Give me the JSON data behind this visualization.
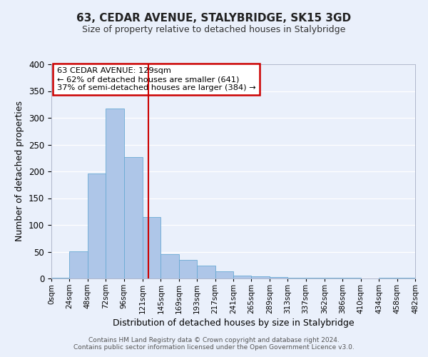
{
  "title": "63, CEDAR AVENUE, STALYBRIDGE, SK15 3GD",
  "subtitle": "Size of property relative to detached houses in Stalybridge",
  "xlabel": "Distribution of detached houses by size in Stalybridge",
  "ylabel": "Number of detached properties",
  "bar_color": "#aec6e8",
  "bar_edge_color": "#6aaad4",
  "background_color": "#eaf0fb",
  "grid_color": "#ffffff",
  "vline_value": 129,
  "vline_color": "#cc0000",
  "bin_edges": [
    0,
    24,
    48,
    72,
    96,
    121,
    145,
    169,
    193,
    217,
    241,
    265,
    289,
    313,
    337,
    362,
    386,
    410,
    434,
    458,
    482
  ],
  "bin_labels": [
    "0sqm",
    "24sqm",
    "48sqm",
    "72sqm",
    "96sqm",
    "121sqm",
    "145sqm",
    "169sqm",
    "193sqm",
    "217sqm",
    "241sqm",
    "265sqm",
    "289sqm",
    "313sqm",
    "337sqm",
    "362sqm",
    "386sqm",
    "410sqm",
    "434sqm",
    "458sqm",
    "482sqm"
  ],
  "bar_heights": [
    2,
    51,
    196,
    318,
    227,
    115,
    46,
    35,
    24,
    14,
    6,
    4,
    3,
    2,
    2,
    2,
    1,
    0,
    2,
    2
  ],
  "ylim": [
    0,
    400
  ],
  "yticks": [
    0,
    50,
    100,
    150,
    200,
    250,
    300,
    350,
    400
  ],
  "annotation_title": "63 CEDAR AVENUE: 129sqm",
  "annotation_line1": "← 62% of detached houses are smaller (641)",
  "annotation_line2": "37% of semi-detached houses are larger (384) →",
  "annotation_box_color": "#ffffff",
  "annotation_box_edge": "#cc0000",
  "footer_line1": "Contains HM Land Registry data © Crown copyright and database right 2024.",
  "footer_line2": "Contains public sector information licensed under the Open Government Licence v3.0."
}
